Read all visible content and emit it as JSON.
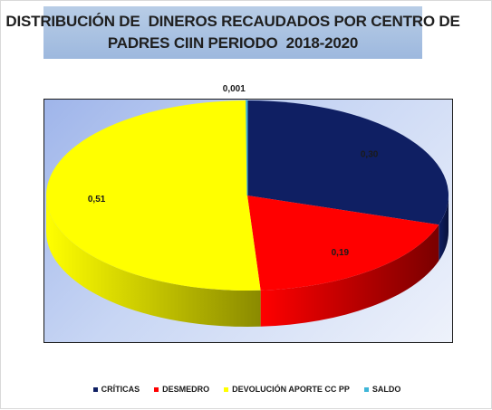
{
  "chart_data": {
    "type": "pie",
    "title": "DISTRIBUCIÓN DE  DINEROS RECAUDADOS POR CENTRO DE PADRES CIIN PERIODO  2018-2020",
    "title_lines": [
      "DISTRIBUCIÓN DE  DINEROS RECAUDADOS POR CENTRO DE",
      "PADRES CIIN PERIODO  2018-2020"
    ],
    "style": "3d-exploded-none",
    "legend_position": "bottom",
    "slices": [
      {
        "name": "CRÍTICAS",
        "value": 0.3,
        "label": "0,30",
        "color": "#0f1f63",
        "side_color": "#07103a"
      },
      {
        "name": "DESMEDRO",
        "value": 0.19,
        "label": "0,19",
        "color": "#ff0000",
        "side_color": "#7a0000"
      },
      {
        "name": "DEVOLUCIÓN APORTE CC PP",
        "value": 0.51,
        "label": "0,51",
        "color": "#ffff00",
        "side_color": "#8a8a00"
      },
      {
        "name": "SALDO",
        "value": 0.001,
        "label": "0,001",
        "color": "#3fb6d8",
        "side_color": "#1d6f86"
      }
    ]
  }
}
